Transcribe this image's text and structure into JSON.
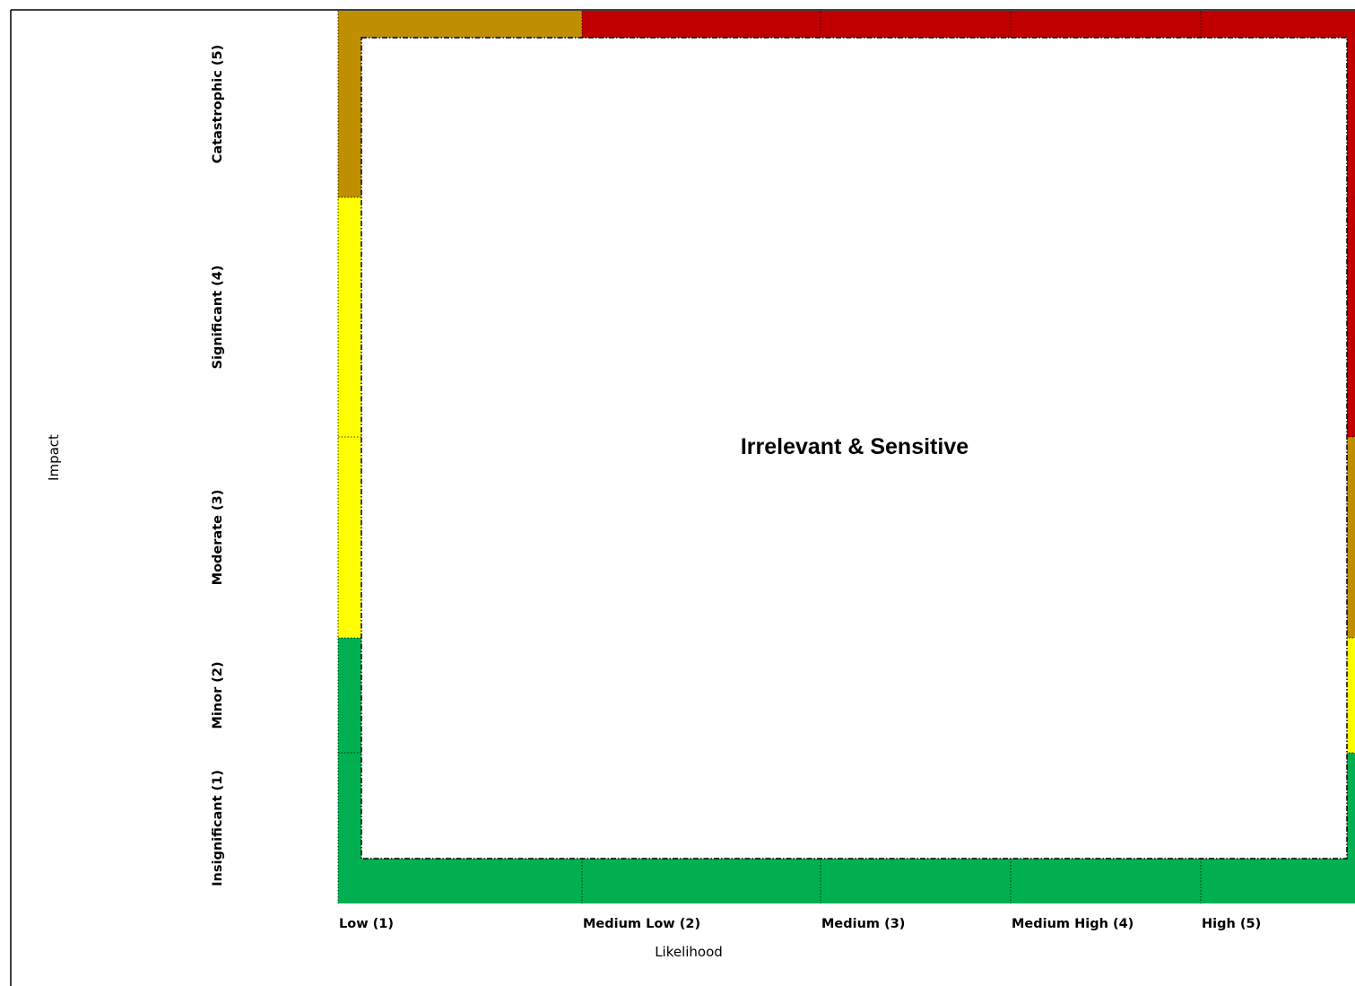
{
  "chart_data": {
    "type": "heatmap",
    "xlabel": "Likelihood",
    "ylabel": "Impact",
    "x_categories": [
      "Low (1)",
      "Medium Low (2)",
      "Medium (3)",
      "Medium High (4)",
      "High (5)"
    ],
    "y_categories": [
      "Insignificant (1)",
      "Minor (2)",
      "Moderate (3)",
      "Significant (4)",
      "Catastrophic (5)"
    ],
    "risk_levels": {
      "low": "#00b050",
      "medium": "#ffff00",
      "high": "#bf8f00",
      "critical": "#c00000"
    },
    "cells": [
      [
        "low",
        "low",
        "low",
        "low",
        "low"
      ],
      [
        "low",
        "low",
        "low",
        "low",
        "medium"
      ],
      [
        "medium",
        "medium",
        "medium",
        "high",
        "high"
      ],
      [
        "medium",
        "high",
        "high",
        "critical",
        "critical"
      ],
      [
        "high",
        "critical",
        "critical",
        "critical",
        "critical"
      ]
    ],
    "overlay": {
      "label": "Irrelevant & Sensitive",
      "fill": "#ffffff",
      "border_style": "dash-dot"
    },
    "grid": true,
    "legend": "none"
  }
}
